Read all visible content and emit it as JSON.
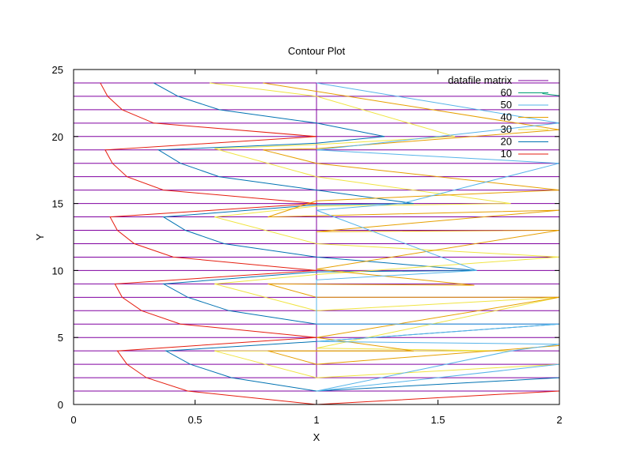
{
  "chart_data": {
    "type": "line",
    "title": "Contour Plot",
    "xlabel": "X",
    "ylabel": "Y",
    "xlim": [
      0,
      2
    ],
    "ylim": [
      0,
      25
    ],
    "x_ticks": [
      "0",
      "0.5",
      "1",
      "1.5",
      "2"
    ],
    "y_ticks": [
      "0",
      "5",
      "10",
      "15",
      "20",
      "25"
    ],
    "x_tick_values": [
      0,
      0.5,
      1,
      1.5,
      2
    ],
    "y_tick_values": [
      0,
      5,
      10,
      15,
      20,
      25
    ],
    "legend_position": "top-right",
    "matrix": {
      "name": "datafile matrix",
      "color": "#8000a0",
      "rows": [
        1,
        2,
        3,
        4,
        5,
        6,
        7,
        8,
        9,
        10,
        11,
        12,
        13,
        14,
        15,
        16,
        17,
        18,
        19,
        20,
        21,
        22,
        23,
        24
      ],
      "x_column": 1,
      "x_column_range": [
        2,
        24
      ]
    },
    "series": [
      {
        "name": "60",
        "color": "#009e73",
        "points": [
          [
            1.93,
            23.2
          ],
          [
            2.0,
            23.05
          ]
        ]
      },
      {
        "name": "50",
        "color": "#56b4e9",
        "points": [
          [
            1.0,
            24.0
          ],
          [
            2.0,
            21.0
          ],
          [
            1.0,
            19.0
          ],
          [
            2.0,
            18.0
          ],
          [
            1.35,
            15.0
          ],
          [
            1.0,
            14.5
          ],
          [
            1.66,
            10.0
          ],
          [
            1.0,
            9.3
          ],
          [
            1.0,
            6.0
          ],
          [
            2.0,
            6.0
          ],
          [
            1.0,
            4.7
          ],
          [
            2.0,
            4.5
          ],
          [
            1.8,
            4.0
          ],
          [
            1.0,
            1.0
          ],
          [
            2.0,
            3.0
          ]
        ]
      },
      {
        "name": "40",
        "color": "#e69f00",
        "points": [
          [
            0.78,
            24.0
          ],
          [
            2.0,
            20.5
          ],
          [
            1.0,
            19.1
          ],
          [
            0.78,
            19.0
          ],
          [
            1.0,
            18.0
          ],
          [
            2.0,
            16.0
          ],
          [
            1.0,
            15.2
          ],
          [
            0.8,
            14.0
          ],
          [
            2.0,
            14.5
          ],
          [
            1.0,
            12.9
          ],
          [
            2.0,
            13.0
          ],
          [
            1.0,
            10.1
          ],
          [
            1.65,
            8.9
          ],
          [
            0.8,
            9.0
          ],
          [
            1.0,
            8.0
          ],
          [
            2.0,
            8.0
          ],
          [
            1.0,
            5.0
          ],
          [
            1.4,
            4.0
          ],
          [
            0.8,
            4.0
          ],
          [
            1.0,
            3.0
          ],
          [
            2.0,
            4.4
          ]
        ]
      },
      {
        "name": "30",
        "color": "#f0e442",
        "points": [
          [
            0.56,
            24.0
          ],
          [
            1.0,
            23.0
          ],
          [
            1.57,
            20.0
          ],
          [
            1.0,
            19.4
          ],
          [
            0.58,
            19.1
          ],
          [
            1.0,
            17.0
          ],
          [
            1.8,
            15.0
          ],
          [
            1.0,
            14.8
          ],
          [
            0.58,
            14.0
          ],
          [
            1.0,
            12.0
          ],
          [
            2.0,
            11.0
          ],
          [
            1.0,
            9.7
          ],
          [
            0.58,
            9.0
          ],
          [
            1.0,
            7.0
          ],
          [
            2.0,
            8.0
          ],
          [
            1.0,
            4.2
          ],
          [
            1.8,
            4.0
          ],
          [
            0.58,
            4.0
          ],
          [
            1.0,
            2.0
          ],
          [
            2.0,
            3.0
          ]
        ]
      },
      {
        "name": "20",
        "color": "#0072b2",
        "points": [
          [
            0.33,
            24.0
          ],
          [
            0.43,
            23.0
          ],
          [
            0.6,
            22.0
          ],
          [
            1.0,
            21.0
          ],
          [
            1.28,
            20.0
          ],
          [
            1.0,
            19.5
          ],
          [
            0.35,
            19.0
          ],
          [
            0.44,
            18.0
          ],
          [
            0.6,
            17.0
          ],
          [
            1.0,
            16.0
          ],
          [
            1.4,
            15.0
          ],
          [
            1.0,
            14.9
          ],
          [
            0.37,
            14.0
          ],
          [
            0.46,
            13.0
          ],
          [
            0.62,
            12.0
          ],
          [
            1.0,
            11.0
          ],
          [
            1.66,
            10.0
          ],
          [
            1.0,
            9.9
          ],
          [
            0.37,
            9.0
          ],
          [
            0.47,
            8.0
          ],
          [
            0.64,
            7.0
          ],
          [
            1.0,
            6.0
          ],
          [
            2.0,
            6.0
          ],
          [
            1.0,
            4.7
          ],
          [
            0.38,
            4.0
          ],
          [
            0.48,
            3.0
          ],
          [
            0.65,
            2.0
          ],
          [
            1.0,
            1.0
          ],
          [
            2.0,
            2.0
          ]
        ]
      },
      {
        "name": "10",
        "color": "#e51e10",
        "points": [
          [
            0.11,
            24.0
          ],
          [
            0.14,
            23.0
          ],
          [
            0.2,
            22.0
          ],
          [
            0.33,
            21.0
          ],
          [
            1.0,
            20.0
          ],
          [
            0.13,
            19.0
          ],
          [
            0.16,
            18.0
          ],
          [
            0.22,
            17.0
          ],
          [
            0.37,
            16.0
          ],
          [
            1.0,
            15.0
          ],
          [
            0.15,
            14.0
          ],
          [
            0.18,
            13.0
          ],
          [
            0.25,
            12.0
          ],
          [
            0.41,
            11.0
          ],
          [
            1.0,
            10.0
          ],
          [
            0.17,
            9.0
          ],
          [
            0.2,
            8.0
          ],
          [
            0.28,
            7.0
          ],
          [
            0.44,
            6.0
          ],
          [
            1.0,
            5.0
          ],
          [
            0.18,
            4.0
          ],
          [
            0.22,
            3.0
          ],
          [
            0.3,
            2.0
          ],
          [
            0.47,
            1.0
          ],
          [
            1.0,
            0.0
          ],
          [
            2.0,
            1.0
          ]
        ]
      }
    ]
  }
}
